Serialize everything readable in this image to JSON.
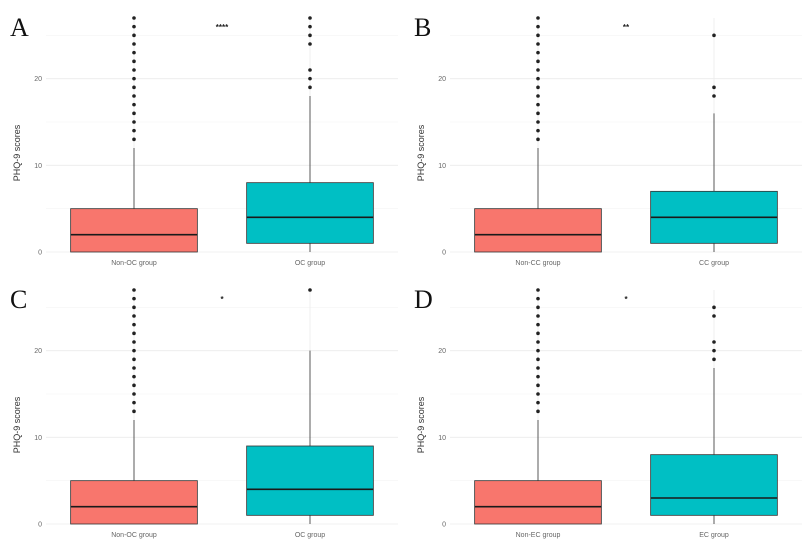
{
  "colors": {
    "left_box": "#F8766D",
    "right_box": "#00BFC4",
    "grid": "#EBEBEB",
    "outline": "#333333"
  },
  "chart_data": [
    {
      "type": "box",
      "panel_label": "A",
      "ylabel": "PHQ-9 scores",
      "ylim": [
        0,
        27
      ],
      "yticks": [
        0,
        10,
        20
      ],
      "significance": "****",
      "grid": true,
      "categories": [
        "Non-OC group",
        "OC group"
      ],
      "boxes": [
        {
          "category": "Non-OC group",
          "q1": 0,
          "median": 2,
          "q3": 5,
          "whisker_low": 0,
          "whisker_high": 12,
          "outliers": [
            13,
            14,
            15,
            16,
            17,
            18,
            19,
            20,
            21,
            22,
            23,
            24,
            25,
            26,
            27
          ]
        },
        {
          "category": "OC group",
          "q1": 1,
          "median": 4,
          "q3": 8,
          "whisker_low": 0,
          "whisker_high": 18,
          "outliers": [
            19,
            20,
            21,
            24,
            25,
            26,
            27
          ]
        }
      ]
    },
    {
      "type": "box",
      "panel_label": "B",
      "ylabel": "PHQ-9 scores",
      "ylim": [
        0,
        27
      ],
      "yticks": [
        0,
        10,
        20
      ],
      "significance": "**",
      "grid": true,
      "categories": [
        "Non-CC group",
        "CC group"
      ],
      "boxes": [
        {
          "category": "Non-CC group",
          "q1": 0,
          "median": 2,
          "q3": 5,
          "whisker_low": 0,
          "whisker_high": 12,
          "outliers": [
            13,
            14,
            15,
            16,
            17,
            18,
            19,
            20,
            21,
            22,
            23,
            24,
            25,
            26,
            27
          ]
        },
        {
          "category": "CC group",
          "q1": 1,
          "median": 4,
          "q3": 7,
          "whisker_low": 0,
          "whisker_high": 16,
          "outliers": [
            18,
            19,
            25
          ]
        }
      ]
    },
    {
      "type": "box",
      "panel_label": "C",
      "ylabel": "PHQ-9 scores",
      "ylim": [
        0,
        27
      ],
      "yticks": [
        0,
        10,
        20
      ],
      "significance": "*",
      "grid": true,
      "categories": [
        "Non-OC group",
        "OC group"
      ],
      "boxes": [
        {
          "category": "Non-OC group",
          "q1": 0,
          "median": 2,
          "q3": 5,
          "whisker_low": 0,
          "whisker_high": 12,
          "outliers": [
            13,
            14,
            15,
            16,
            17,
            18,
            19,
            20,
            21,
            22,
            23,
            24,
            25,
            26,
            27
          ]
        },
        {
          "category": "OC group",
          "q1": 1,
          "median": 4,
          "q3": 9,
          "whisker_low": 0,
          "whisker_high": 20,
          "outliers": [
            27
          ]
        }
      ]
    },
    {
      "type": "box",
      "panel_label": "D",
      "ylabel": "PHQ-9 scores",
      "ylim": [
        0,
        27
      ],
      "yticks": [
        0,
        10,
        20
      ],
      "significance": "*",
      "grid": true,
      "categories": [
        "Non-EC group",
        "EC group"
      ],
      "boxes": [
        {
          "category": "Non-EC group",
          "q1": 0,
          "median": 2,
          "q3": 5,
          "whisker_low": 0,
          "whisker_high": 12,
          "outliers": [
            13,
            14,
            15,
            16,
            17,
            18,
            19,
            20,
            21,
            22,
            23,
            24,
            25,
            26,
            27
          ]
        },
        {
          "category": "EC group",
          "q1": 1,
          "median": 3,
          "q3": 8,
          "whisker_low": 0,
          "whisker_high": 18,
          "outliers": [
            19,
            20,
            21,
            24,
            25
          ]
        }
      ]
    }
  ]
}
